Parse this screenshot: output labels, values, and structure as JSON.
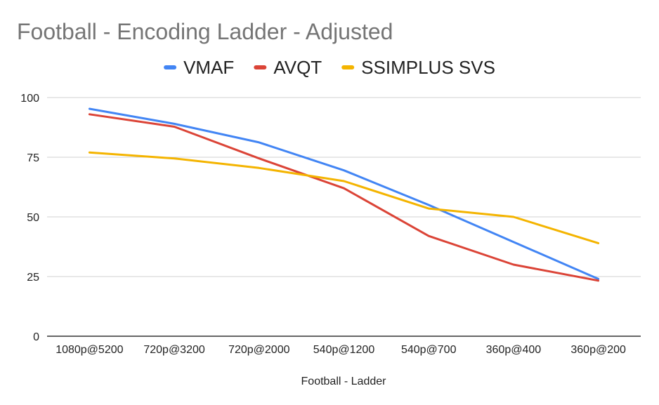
{
  "chart_data": {
    "type": "line",
    "title": "Football - Encoding Ladder - Adjusted",
    "xlabel": "Football - Ladder",
    "ylabel": "",
    "ylim": [
      0,
      100
    ],
    "yticks": [
      0,
      25,
      50,
      75,
      100
    ],
    "grid": true,
    "legend_position": "top",
    "categories": [
      "1080p@5200",
      "720p@3200",
      "720p@2000",
      "540p@1200",
      "540p@700",
      "360p@400",
      "360p@200"
    ],
    "series": [
      {
        "name": "VMAF",
        "color": "#4285f4",
        "values": [
          95.3,
          89.0,
          81.2,
          69.5,
          55.0,
          39.5,
          24.0
        ]
      },
      {
        "name": "AVQT",
        "color": "#db4437",
        "values": [
          93.0,
          87.8,
          74.5,
          62.0,
          42.0,
          30.0,
          23.3
        ]
      },
      {
        "name": "SSIMPLUS SVS",
        "color": "#f4b400",
        "values": [
          77.0,
          74.5,
          70.5,
          65.0,
          53.5,
          50.0,
          39.0
        ]
      }
    ]
  }
}
